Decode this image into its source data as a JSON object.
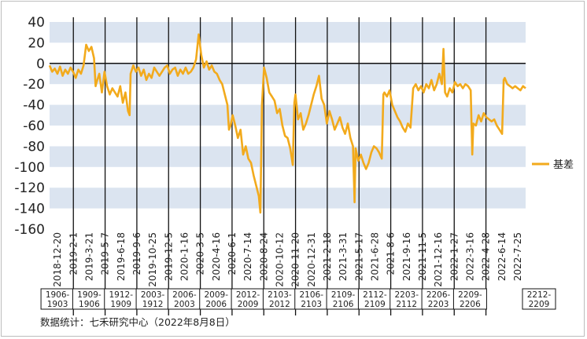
{
  "chart_data": {
    "type": "line",
    "title": "",
    "xlabel": "",
    "ylabel": "",
    "ylim": [
      -160,
      40
    ],
    "y_ticks": [
      40,
      20,
      0,
      -20,
      -40,
      -60,
      -80,
      -100,
      -120,
      -140,
      -160
    ],
    "grid": "alternating horizontal bands",
    "legend_position": "right",
    "x_tick_labels": [
      "2018-12-20",
      "2019-2-1",
      "2019-3-21",
      "2019-5-7",
      "2019-6-18",
      "2019-9-6",
      "2019-10-25",
      "2019-12-5",
      "2020-1-16",
      "2020-3-5",
      "2020-4-16",
      "2020-6-1",
      "2020-7-14",
      "2020-8-24",
      "2020-10-12",
      "2020-11-20",
      "2020-12-31",
      "2021-2-18",
      "2021-3-31",
      "2021-5-17",
      "2021-6-28",
      "2021-8-6",
      "2021-9-16",
      "2021-11-5",
      "2021-12-16",
      "2022-1-27",
      "2022-3-16",
      "2022-4-28",
      "2022-6-14",
      "2022-7-25"
    ],
    "contract_labels": [
      [
        "1906-",
        "1903"
      ],
      [
        "1909-",
        "1906"
      ],
      [
        "1912-",
        "1909"
      ],
      [
        "2003-",
        "1912"
      ],
      [
        "2006-",
        "2003"
      ],
      [
        "2009-",
        "2006"
      ],
      [
        "2012-",
        "2009"
      ],
      [
        "2103-",
        "2012"
      ],
      [
        "2106-",
        "2103"
      ],
      [
        "2109-",
        "2106"
      ],
      [
        "2112-",
        "2109"
      ],
      [
        "2203-",
        "2112"
      ],
      [
        "2206-",
        "2203"
      ],
      [
        "2209-",
        "2206"
      ],
      [
        "2212-",
        "2209"
      ]
    ],
    "series": [
      {
        "name": "基差",
        "color": "#f2aa1c",
        "points": [
          [
            0,
            -2
          ],
          [
            0.5,
            -8
          ],
          [
            1,
            -5
          ],
          [
            1.5,
            -10
          ],
          [
            2,
            -3
          ],
          [
            2.5,
            -12
          ],
          [
            3,
            -6
          ],
          [
            3.5,
            -10
          ],
          [
            4,
            -4
          ],
          [
            4.5,
            -8
          ],
          [
            5,
            -14
          ],
          [
            5.5,
            -6
          ],
          [
            6,
            -10
          ],
          [
            6.5,
            -2
          ],
          [
            7,
            18
          ],
          [
            7.5,
            12
          ],
          [
            8,
            16
          ],
          [
            8.5,
            5
          ],
          [
            8.8,
            -22
          ],
          [
            9,
            -18
          ],
          [
            9.5,
            -10
          ],
          [
            10,
            -28
          ],
          [
            10.5,
            -8
          ],
          [
            11,
            -22
          ],
          [
            11.5,
            -30
          ],
          [
            12,
            -24
          ],
          [
            12.5,
            -28
          ],
          [
            13,
            -32
          ],
          [
            13.5,
            -22
          ],
          [
            14,
            -38
          ],
          [
            14.5,
            -28
          ],
          [
            15,
            -46
          ],
          [
            15.3,
            -50
          ],
          [
            15.5,
            -10
          ],
          [
            16,
            -2
          ],
          [
            16.5,
            -8
          ],
          [
            17,
            -4
          ],
          [
            17.5,
            -12
          ],
          [
            18,
            -6
          ],
          [
            18.5,
            -16
          ],
          [
            19,
            -10
          ],
          [
            19.5,
            -14
          ],
          [
            20,
            -4
          ],
          [
            20.5,
            -8
          ],
          [
            21,
            -12
          ],
          [
            21.5,
            -8
          ],
          [
            22,
            -4
          ],
          [
            22.5,
            -2
          ],
          [
            23,
            -10
          ],
          [
            23.5,
            -6
          ],
          [
            24,
            -4
          ],
          [
            24.5,
            -12
          ],
          [
            25,
            -6
          ],
          [
            25.5,
            -10
          ],
          [
            26,
            -4
          ],
          [
            26.5,
            -10
          ],
          [
            27,
            -8
          ],
          [
            27.5,
            -4
          ],
          [
            28,
            4
          ],
          [
            28.5,
            28
          ],
          [
            29,
            8
          ],
          [
            29.5,
            -4
          ],
          [
            30,
            2
          ],
          [
            30.5,
            -6
          ],
          [
            31,
            -2
          ],
          [
            31.5,
            -8
          ],
          [
            32,
            -10
          ],
          [
            32.5,
            -16
          ],
          [
            33,
            -20
          ],
          [
            33.5,
            -30
          ],
          [
            34,
            -40
          ],
          [
            34.3,
            -64
          ],
          [
            34.6,
            -60
          ],
          [
            35,
            -50
          ],
          [
            35.5,
            -60
          ],
          [
            36,
            -72
          ],
          [
            36.5,
            -64
          ],
          [
            37,
            -88
          ],
          [
            37.5,
            -80
          ],
          [
            38,
            -92
          ],
          [
            38.5,
            -96
          ],
          [
            39,
            -108
          ],
          [
            39.5,
            -118
          ],
          [
            40,
            -128
          ],
          [
            40.3,
            -144
          ],
          [
            40.6,
            -40
          ],
          [
            41,
            -4
          ],
          [
            41.5,
            -14
          ],
          [
            42,
            -28
          ],
          [
            42.5,
            -32
          ],
          [
            43,
            -36
          ],
          [
            43.5,
            -48
          ],
          [
            44,
            -44
          ],
          [
            44.5,
            -60
          ],
          [
            45,
            -70
          ],
          [
            45.5,
            -72
          ],
          [
            46,
            -82
          ],
          [
            46.5,
            -98
          ],
          [
            46.8,
            -38
          ],
          [
            47,
            -30
          ],
          [
            47.5,
            -54
          ],
          [
            48,
            -48
          ],
          [
            48.5,
            -64
          ],
          [
            49,
            -58
          ],
          [
            49.5,
            -50
          ],
          [
            50,
            -40
          ],
          [
            50.5,
            -30
          ],
          [
            51,
            -22
          ],
          [
            51.5,
            -12
          ],
          [
            52,
            -34
          ],
          [
            52.5,
            -40
          ],
          [
            53,
            -58
          ],
          [
            53.5,
            -46
          ],
          [
            54,
            -54
          ],
          [
            54.5,
            -64
          ],
          [
            55,
            -58
          ],
          [
            55.5,
            -52
          ],
          [
            56,
            -62
          ],
          [
            56.5,
            -68
          ],
          [
            57,
            -58
          ],
          [
            57.5,
            -72
          ],
          [
            58,
            -80
          ],
          [
            58.3,
            -134
          ],
          [
            58.5,
            -82
          ],
          [
            59,
            -94
          ],
          [
            59.5,
            -88
          ],
          [
            60,
            -96
          ],
          [
            60.5,
            -102
          ],
          [
            61,
            -96
          ],
          [
            61.5,
            -86
          ],
          [
            62,
            -80
          ],
          [
            62.5,
            -82
          ],
          [
            63,
            -86
          ],
          [
            63.5,
            -92
          ],
          [
            63.8,
            -30
          ],
          [
            64,
            -28
          ],
          [
            64.5,
            -32
          ],
          [
            65,
            -26
          ],
          [
            65.5,
            -40
          ],
          [
            66,
            -46
          ],
          [
            66.5,
            -52
          ],
          [
            67,
            -56
          ],
          [
            67.5,
            -62
          ],
          [
            68,
            -66
          ],
          [
            68.5,
            -58
          ],
          [
            69,
            -62
          ],
          [
            69.5,
            -24
          ],
          [
            70,
            -20
          ],
          [
            70.5,
            -26
          ],
          [
            71,
            -22
          ],
          [
            71.5,
            -28
          ],
          [
            72,
            -20
          ],
          [
            72.5,
            -24
          ],
          [
            73,
            -16
          ],
          [
            73.5,
            -26
          ],
          [
            74,
            -20
          ],
          [
            74.5,
            -10
          ],
          [
            75,
            -20
          ],
          [
            75.3,
            14
          ],
          [
            75.6,
            -28
          ],
          [
            76,
            -32
          ],
          [
            76.5,
            -24
          ],
          [
            77,
            -28
          ],
          [
            77.5,
            -18
          ],
          [
            78,
            -22
          ],
          [
            78.5,
            -20
          ],
          [
            79,
            -24
          ],
          [
            79.5,
            -20
          ],
          [
            80,
            -22
          ],
          [
            80.5,
            -26
          ],
          [
            80.8,
            -88
          ],
          [
            81,
            -58
          ],
          [
            81.5,
            -60
          ],
          [
            82,
            -50
          ],
          [
            82.5,
            -56
          ],
          [
            83,
            -48
          ],
          [
            83.5,
            -52
          ],
          [
            84,
            -54
          ],
          [
            84.5,
            -56
          ],
          [
            85,
            -54
          ],
          [
            85.5,
            -60
          ],
          [
            86,
            -64
          ],
          [
            86.5,
            -68
          ],
          [
            86.8,
            -16
          ],
          [
            87,
            -14
          ],
          [
            87.5,
            -20
          ],
          [
            88,
            -22
          ],
          [
            88.5,
            -24
          ],
          [
            89,
            -22
          ],
          [
            89.5,
            -24
          ],
          [
            90,
            -26
          ],
          [
            90.5,
            -22
          ],
          [
            91,
            -24
          ]
        ]
      }
    ]
  },
  "source_note": "数据统计：七禾研究中心（2022年8月8日）"
}
